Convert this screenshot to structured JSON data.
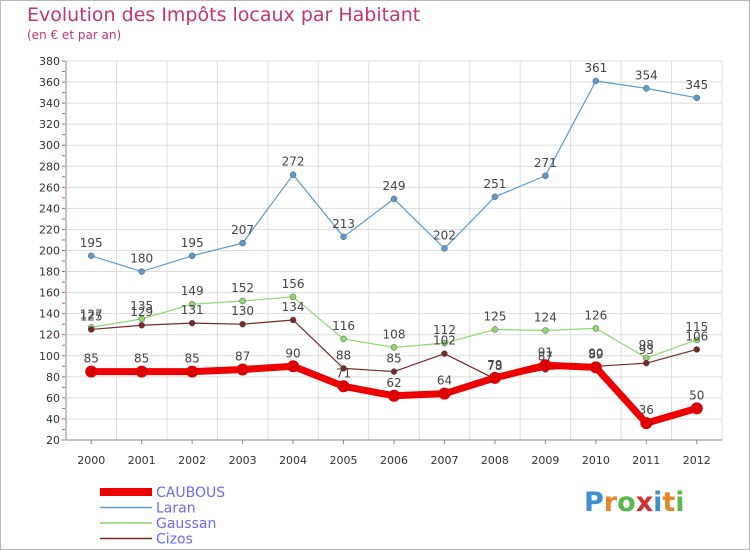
{
  "header": {
    "title": "Evolution des Impôts locaux par Habitant",
    "subtitle": "(en € et par an)"
  },
  "brand": {
    "logo_text": "Proxiti",
    "letter_colors": [
      "#3d8fd1",
      "#e8852a",
      "#5cb84c",
      "#d13030",
      "#3d8fd1",
      "#e8852a",
      "#5cb84c"
    ]
  },
  "chart_data": {
    "type": "line",
    "title": "Evolution des Impôts locaux par Habitant",
    "subtitle": "(en € et par an)",
    "xlabel": "",
    "ylabel": "",
    "x": [
      "2000",
      "2001",
      "2002",
      "2003",
      "2004",
      "2005",
      "2006",
      "2007",
      "2008",
      "2009",
      "2010",
      "2011",
      "2012"
    ],
    "ylim": [
      20,
      380
    ],
    "yticks": [
      20,
      40,
      60,
      80,
      100,
      120,
      140,
      160,
      180,
      200,
      220,
      240,
      260,
      280,
      300,
      320,
      340,
      360,
      380
    ],
    "grid": true,
    "legend_position": "bottom-left",
    "series": [
      {
        "name": "Laran",
        "color": "#5b9bd0",
        "line_width": 1.2,
        "marker_radius": 3,
        "values": [
          195,
          180,
          195,
          207,
          272,
          213,
          249,
          202,
          251,
          271,
          361,
          354,
          345
        ]
      },
      {
        "name": "Gaussan",
        "color": "#8fd86f",
        "line_width": 1.2,
        "marker_radius": 3,
        "values": [
          127,
          135,
          149,
          152,
          156,
          116,
          108,
          112,
          125,
          124,
          126,
          98,
          115
        ]
      },
      {
        "name": "Cizos",
        "color": "#7a2828",
        "line_width": 1.2,
        "marker_radius": 3,
        "values": [
          125,
          129,
          131,
          130,
          134,
          88,
          85,
          102,
          78,
          87,
          90,
          93,
          106
        ]
      },
      {
        "name": "CAUBOUS",
        "color": "#ee0000",
        "line_width": 7,
        "marker_radius": 6,
        "values": [
          85,
          85,
          85,
          87,
          90,
          71,
          62,
          64,
          79,
          91,
          89,
          36,
          50
        ]
      }
    ],
    "legend": [
      "CAUBOUS",
      "Laran",
      "Gaussan",
      "Cizos"
    ]
  }
}
